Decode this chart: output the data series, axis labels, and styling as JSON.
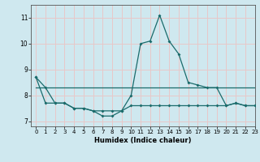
{
  "xlabel": "Humidex (Indice chaleur)",
  "xlim": [
    -0.5,
    23
  ],
  "ylim": [
    6.8,
    11.5
  ],
  "yticks": [
    7,
    8,
    9,
    10,
    11
  ],
  "xticks": [
    0,
    1,
    2,
    3,
    4,
    5,
    6,
    7,
    8,
    9,
    10,
    11,
    12,
    13,
    14,
    15,
    16,
    17,
    18,
    19,
    20,
    21,
    22,
    23
  ],
  "bg_color": "#cfe8ef",
  "grid_color": "#e8c8c8",
  "line_color": "#1a6b6b",
  "series1_y": [
    8.3,
    8.3,
    8.3,
    8.3,
    8.3,
    8.3,
    8.3,
    8.3,
    8.3,
    8.3,
    8.3,
    8.3,
    8.3,
    8.3,
    8.3,
    8.3,
    8.3,
    8.3,
    8.3,
    8.3,
    8.3,
    8.3,
    8.3,
    8.3
  ],
  "series2_y": [
    8.7,
    8.3,
    7.7,
    7.7,
    7.5,
    7.5,
    7.4,
    7.2,
    7.2,
    7.4,
    8.0,
    10.0,
    10.1,
    11.1,
    10.1,
    9.6,
    8.5,
    8.4,
    8.3,
    8.3,
    7.6,
    7.7,
    7.6,
    7.6
  ],
  "series3_y": [
    8.7,
    7.7,
    7.7,
    7.7,
    7.5,
    7.5,
    7.4,
    7.4,
    7.4,
    7.4,
    7.6,
    7.6,
    7.6,
    7.6,
    7.6,
    7.6,
    7.6,
    7.6,
    7.6,
    7.6,
    7.6,
    7.7,
    7.6,
    7.6
  ]
}
